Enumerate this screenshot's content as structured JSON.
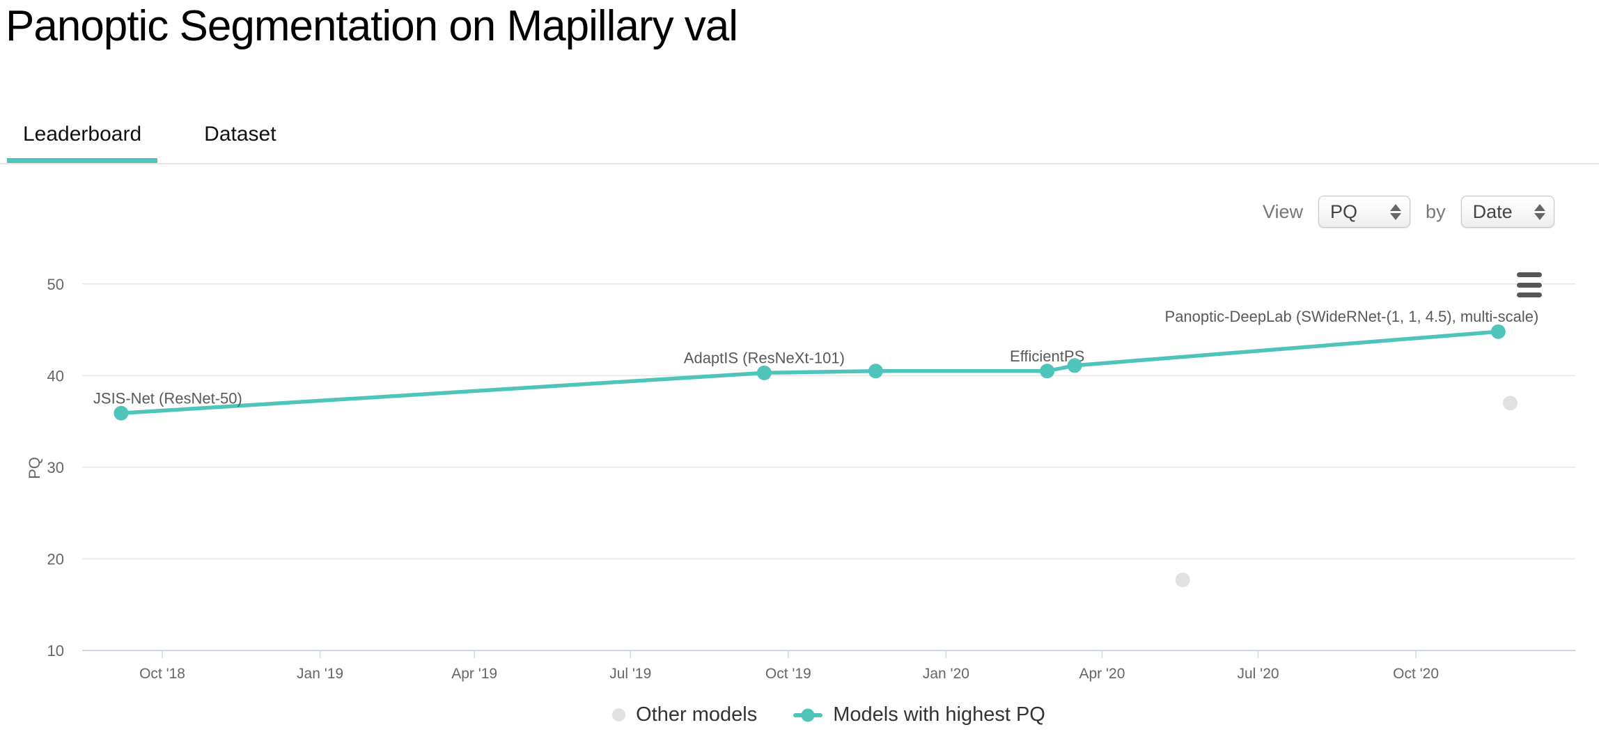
{
  "page": {
    "title": "Panoptic Segmentation on Mapillary val"
  },
  "tabs": [
    {
      "label": "Leaderboard",
      "active": true
    },
    {
      "label": "Dataset",
      "active": false
    }
  ],
  "view_controls": {
    "view_label": "View",
    "metric_select": {
      "value": "PQ",
      "icon": "stepper-arrows-icon"
    },
    "by_label": "by",
    "sort_select": {
      "value": "Date",
      "icon": "stepper-arrows-icon"
    }
  },
  "export_menu": {
    "icon": "hamburger-icon"
  },
  "colors": {
    "accent_teal": "#4ec4bc",
    "highlight_series": "#4fc4ba",
    "other_series": "#e1e1e1",
    "gridline": "#e6e6e6",
    "axis_line": "#ccd6eb",
    "tick_text": "#666666",
    "annotation_text": "#595959"
  },
  "chart_data": {
    "type": "line",
    "title": "",
    "xlabel": "",
    "ylabel": "PQ",
    "ylim": [
      10,
      50
    ],
    "yticks": [
      10,
      20,
      30,
      40,
      50
    ],
    "x_domain": [
      "2018-08-15",
      "2021-01-02"
    ],
    "xticks": [
      {
        "date": "2018-10-01",
        "label": "Oct '18"
      },
      {
        "date": "2019-01-01",
        "label": "Jan '19"
      },
      {
        "date": "2019-04-01",
        "label": "Apr '19"
      },
      {
        "date": "2019-07-01",
        "label": "Jul '19"
      },
      {
        "date": "2019-10-01",
        "label": "Oct '19"
      },
      {
        "date": "2020-01-01",
        "label": "Jan '20"
      },
      {
        "date": "2020-04-01",
        "label": "Apr '20"
      },
      {
        "date": "2020-07-01",
        "label": "Jul '20"
      },
      {
        "date": "2020-10-01",
        "label": "Oct '20"
      }
    ],
    "grid": true,
    "legend_position": "bottom-center",
    "series": [
      {
        "name": "Other models",
        "type": "scatter",
        "color": "#e1e1e1",
        "points": [
          {
            "date": "2020-05-18",
            "pq": 17.7
          },
          {
            "date": "2020-11-25",
            "pq": 37.0
          }
        ]
      },
      {
        "name": "Models with highest PQ",
        "type": "line",
        "color": "#4fc4ba",
        "points": [
          {
            "date": "2018-09-07",
            "pq": 35.9,
            "label": "JSIS-Net (ResNet-50)",
            "label_anchor": "start",
            "label_dx": -40
          },
          {
            "date": "2019-09-17",
            "pq": 40.3,
            "label": "AdaptIS (ResNeXt-101)"
          },
          {
            "date": "2019-11-21",
            "pq": 40.5
          },
          {
            "date": "2020-02-29",
            "pq": 40.5,
            "label": "EfficientPS"
          },
          {
            "date": "2020-03-16",
            "pq": 41.1
          },
          {
            "date": "2020-11-18",
            "pq": 44.8,
            "label": "Panoptic-DeepLab (SWideRNet-(1, 1, 4.5), multi-scale)",
            "label_anchor": "end",
            "label_dx": 58
          }
        ]
      }
    ]
  }
}
